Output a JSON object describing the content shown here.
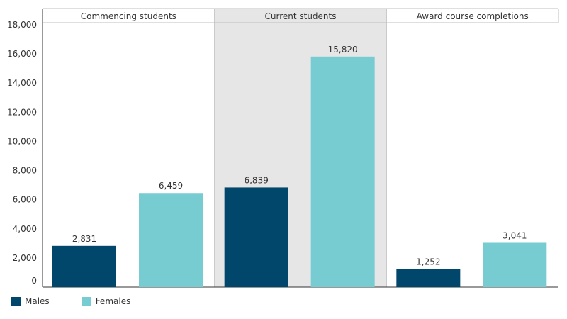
{
  "chart_data": {
    "type": "bar",
    "panels": [
      "Commencing students",
      "Current students",
      "Award course completions"
    ],
    "highlighted_panel": "Current students",
    "series": [
      {
        "name": "Males",
        "color": "#00476b",
        "values": [
          2831,
          6839,
          1252
        ],
        "labels": [
          "2,831",
          "6,839",
          "1,252"
        ]
      },
      {
        "name": "Females",
        "color": "#77ccd1",
        "values": [
          6459,
          15820,
          3041
        ],
        "labels": [
          "6,459",
          "15,820",
          "3,041"
        ]
      }
    ],
    "ylim": [
      0,
      18000
    ],
    "yticks": [
      0,
      2000,
      4000,
      6000,
      8000,
      10000,
      12000,
      14000,
      16000,
      18000
    ],
    "ytick_labels": [
      "0",
      "2,000",
      "4,000",
      "6,000",
      "8,000",
      "10,000",
      "12,000",
      "14,000",
      "16,000",
      "18,000"
    ],
    "grid": false,
    "legend_position": "bottom-left",
    "highlight_color": "#e6e6e6"
  }
}
